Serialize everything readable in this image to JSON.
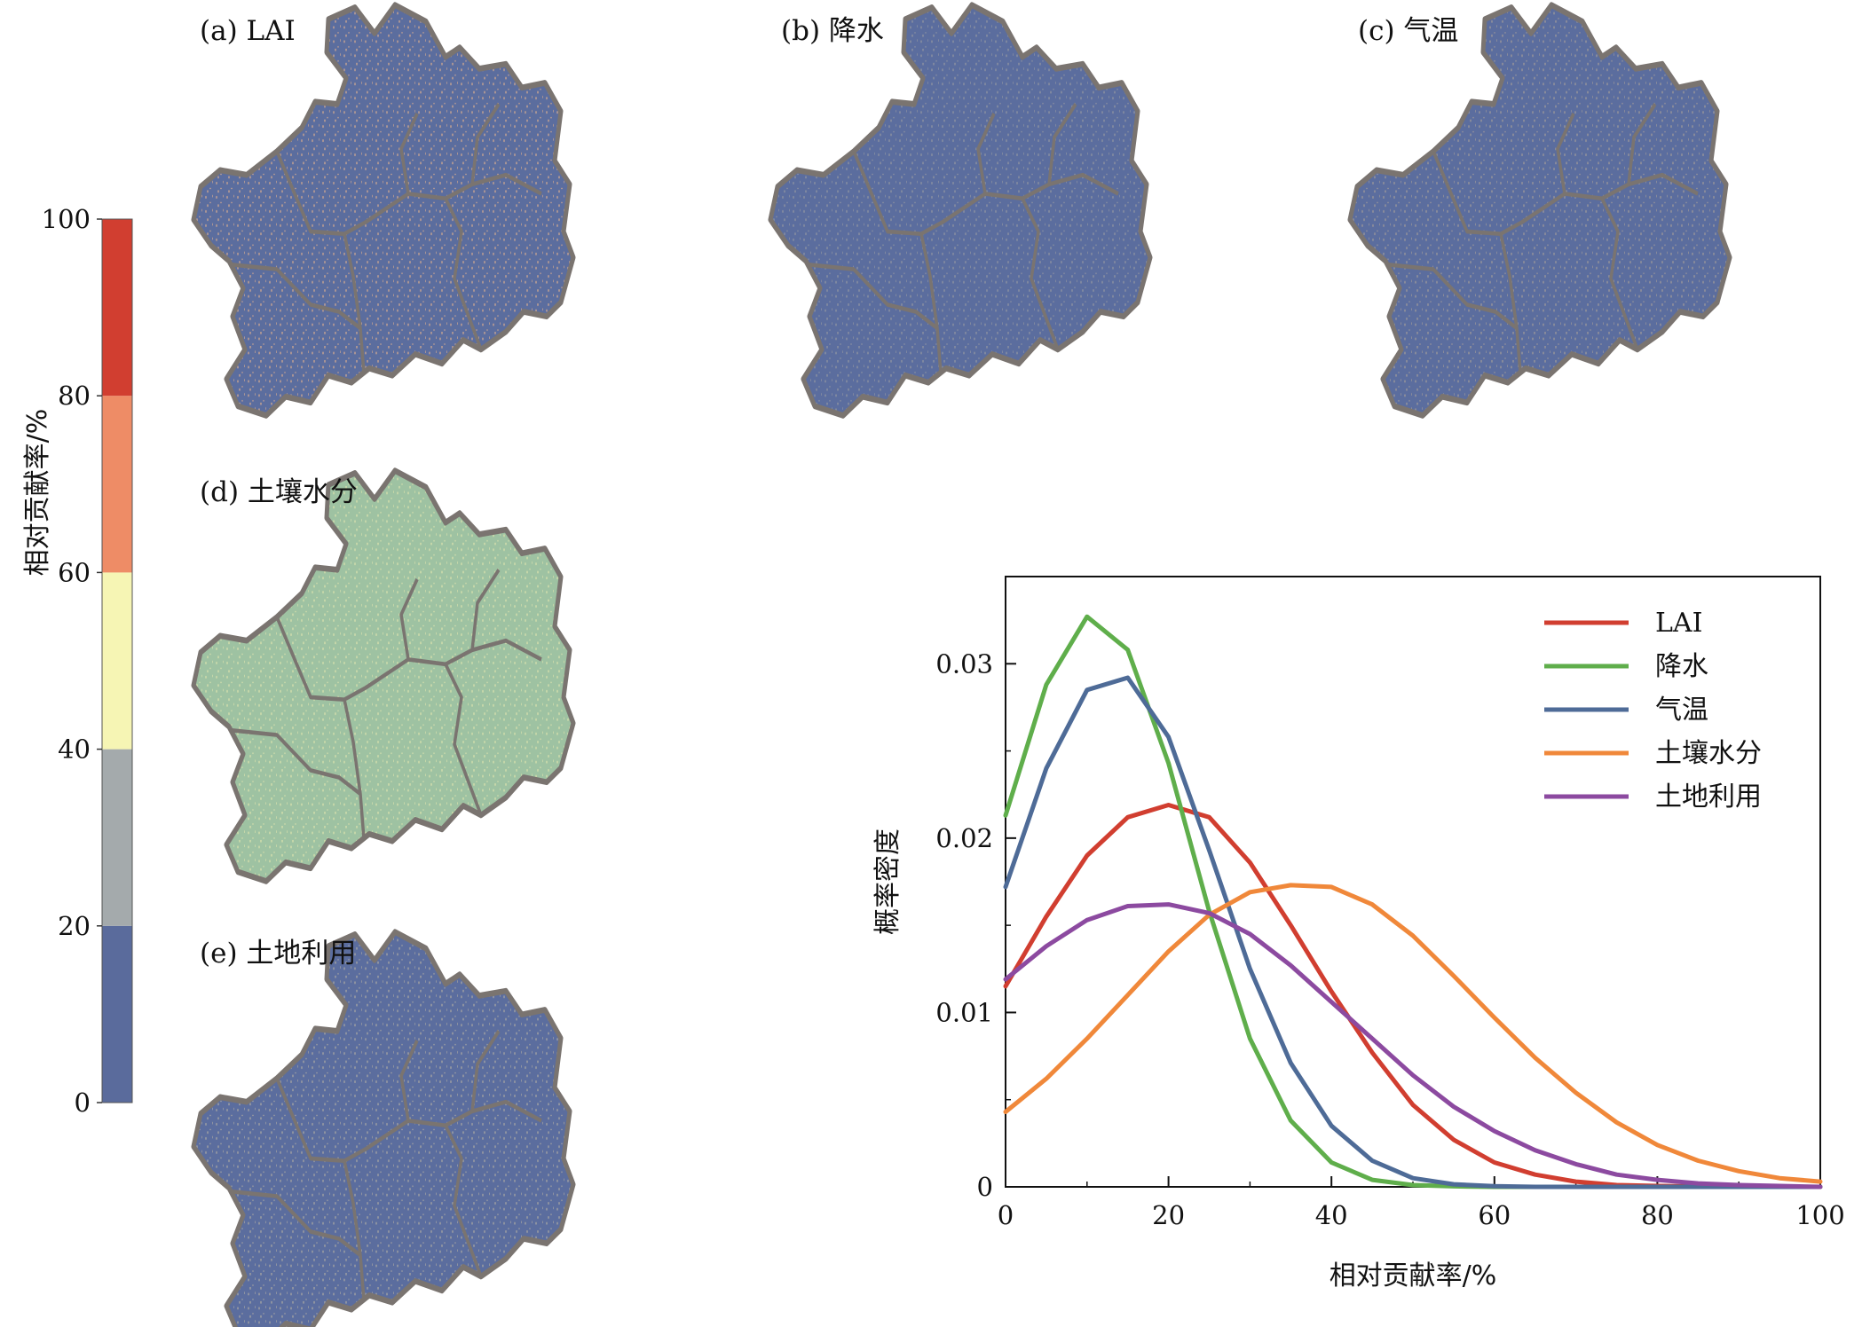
{
  "colorbar": {
    "label": "相对贡献率/%",
    "ticks": [
      0,
      20,
      40,
      60,
      80,
      100
    ],
    "bins": [
      {
        "from": 0,
        "to": 20,
        "color": "#5a6b9c"
      },
      {
        "from": 20,
        "to": 40,
        "color": "#a4aaac"
      },
      {
        "from": 40,
        "to": 60,
        "color": "#f6f5b4"
      },
      {
        "from": 60,
        "to": 80,
        "color": "#ee8c66"
      },
      {
        "from": 80,
        "to": 100,
        "color": "#d13e30"
      }
    ]
  },
  "panels": [
    {
      "label": "(a) LAI",
      "speckle": "#e7b48e",
      "density": 0.55
    },
    {
      "label": "(b) 降水",
      "speckle": "#e6d6a4",
      "density": 0.25
    },
    {
      "label": "(c) 气温",
      "speckle": "#efcf95",
      "density": 0.3
    },
    {
      "label": "(d) 土壤水分",
      "speckle": "#e9e9b0",
      "density": 0.5
    },
    {
      "label": "(e) 土地利用",
      "speckle": "#e9d8a6",
      "density": 0.35
    }
  ],
  "colors": {
    "map_base": "#5b6d9e",
    "map_base_soil": "#9ec2a2",
    "boundary": "#7a7470"
  },
  "chart_data": {
    "type": "line",
    "xlabel": "相对贡献率/%",
    "ylabel": "概率密度",
    "xlim": [
      0,
      100
    ],
    "ylim": [
      0,
      0.035
    ],
    "xticks": [
      0,
      20,
      40,
      60,
      80,
      100
    ],
    "yticks": [
      0,
      0.01,
      0.02,
      0.03
    ],
    "ytick_labels": [
      "0",
      "0.01",
      "0.02",
      "0.03"
    ],
    "legend_position": "top-right",
    "series": [
      {
        "name": "LAI",
        "color": "#d13e30",
        "x": [
          0,
          5,
          10,
          15,
          20,
          25,
          30,
          35,
          40,
          45,
          50,
          55,
          60,
          65,
          70,
          75,
          80,
          85,
          90,
          95,
          100
        ],
        "y": [
          0.0115,
          0.0155,
          0.019,
          0.0212,
          0.0219,
          0.0212,
          0.0186,
          0.015,
          0.0112,
          0.0077,
          0.0047,
          0.0027,
          0.0014,
          0.0007,
          0.0003,
          0.0001,
          5e-05,
          2e-05,
          0.0,
          0.0,
          0.0
        ]
      },
      {
        "name": "降水",
        "color": "#5fae4b",
        "x": [
          0,
          5,
          10,
          15,
          20,
          25,
          30,
          35,
          40,
          45,
          50,
          55,
          60,
          65,
          70,
          75,
          80,
          85,
          90,
          95,
          100
        ],
        "y": [
          0.0213,
          0.0288,
          0.0327,
          0.0308,
          0.0243,
          0.0158,
          0.0085,
          0.0038,
          0.0014,
          0.0004,
          0.0001,
          3e-05,
          0.0,
          0.0,
          0.0,
          0.0,
          0.0,
          0.0,
          0.0,
          0.0,
          0.0
        ]
      },
      {
        "name": "气温",
        "color": "#4e6b97",
        "x": [
          0,
          5,
          10,
          15,
          20,
          25,
          30,
          35,
          40,
          45,
          50,
          55,
          60,
          65,
          70,
          75,
          80,
          85,
          90,
          95,
          100
        ],
        "y": [
          0.0172,
          0.024,
          0.0285,
          0.0292,
          0.0258,
          0.0193,
          0.0125,
          0.0071,
          0.0035,
          0.0015,
          0.0005,
          0.00015,
          4e-05,
          0.0,
          0.0,
          0.0,
          0.0,
          0.0,
          0.0,
          0.0,
          0.0
        ]
      },
      {
        "name": "土壤水分",
        "color": "#f0883a",
        "x": [
          0,
          5,
          10,
          15,
          20,
          25,
          30,
          35,
          40,
          45,
          50,
          55,
          60,
          65,
          70,
          75,
          80,
          85,
          90,
          95,
          100
        ],
        "y": [
          0.0043,
          0.0062,
          0.0085,
          0.011,
          0.0135,
          0.0156,
          0.0169,
          0.0173,
          0.0172,
          0.0162,
          0.0144,
          0.0121,
          0.0097,
          0.0074,
          0.0054,
          0.0037,
          0.0024,
          0.0015,
          0.0009,
          0.0005,
          0.0003
        ]
      },
      {
        "name": "土地利用",
        "color": "#8c4aa0",
        "x": [
          0,
          5,
          10,
          15,
          20,
          25,
          30,
          35,
          40,
          45,
          50,
          55,
          60,
          65,
          70,
          75,
          80,
          85,
          90,
          95,
          100
        ],
        "y": [
          0.0119,
          0.0138,
          0.0153,
          0.0161,
          0.0162,
          0.0157,
          0.0145,
          0.0127,
          0.0106,
          0.0085,
          0.0064,
          0.0046,
          0.0032,
          0.0021,
          0.0013,
          0.0007,
          0.0004,
          0.0002,
          0.0001,
          5e-05,
          0.0
        ]
      }
    ]
  }
}
